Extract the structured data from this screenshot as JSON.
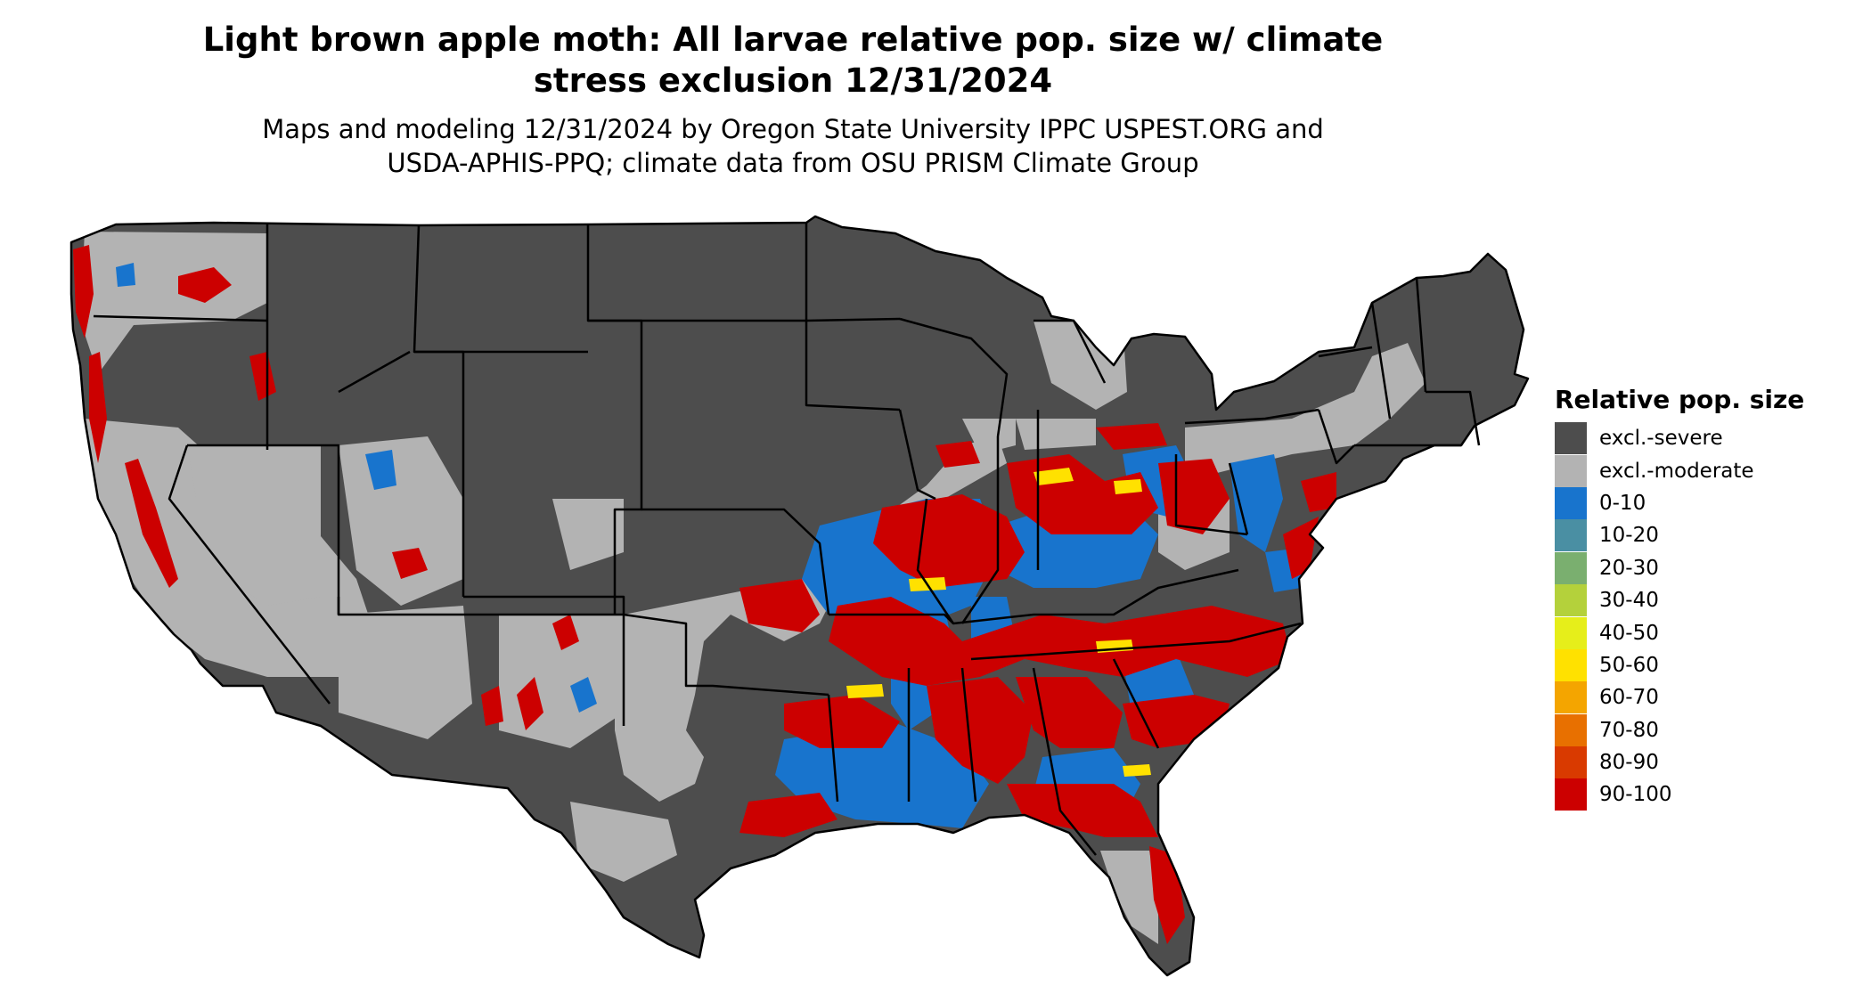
{
  "title": {
    "line1": "Light brown apple moth: All larvae relative pop. size w/ climate",
    "line2": "stress exclusion 12/31/2024"
  },
  "subtitle": {
    "line1": "Maps and modeling 12/31/2024 by Oregon State University IPPC USPEST.ORG and",
    "line2": "USDA-APHIS-PPQ; climate data from OSU PRISM Climate Group"
  },
  "legend": {
    "title": "Relative pop. size",
    "items": [
      {
        "label": "excl.-severe",
        "color": "#4d4d4d"
      },
      {
        "label": "excl.-moderate",
        "color": "#b3b3b3"
      },
      {
        "label": "0-10",
        "color": "#1874cd"
      },
      {
        "label": "10-20",
        "color": "#4a8fa3"
      },
      {
        "label": "20-30",
        "color": "#7aaf6f"
      },
      {
        "label": "30-40",
        "color": "#b4d13b"
      },
      {
        "label": "40-50",
        "color": "#e6ee1a"
      },
      {
        "label": "50-60",
        "color": "#ffe100"
      },
      {
        "label": "60-70",
        "color": "#f4a500"
      },
      {
        "label": "70-80",
        "color": "#e87000"
      },
      {
        "label": "80-90",
        "color": "#d93a00"
      },
      {
        "label": "90-100",
        "color": "#cc0000"
      }
    ]
  }
}
